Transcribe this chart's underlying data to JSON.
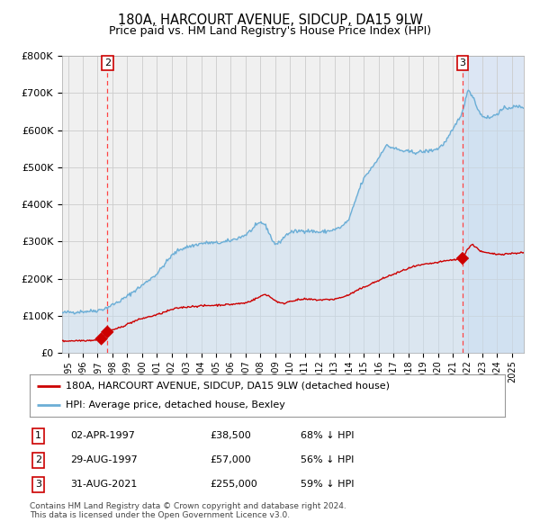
{
  "title": "180A, HARCOURT AVENUE, SIDCUP, DA15 9LW",
  "subtitle": "Price paid vs. HM Land Registry's House Price Index (HPI)",
  "ylim": [
    0,
    800000
  ],
  "yticks": [
    0,
    100000,
    200000,
    300000,
    400000,
    500000,
    600000,
    700000,
    800000
  ],
  "ytick_labels": [
    "£0",
    "£100K",
    "£200K",
    "£300K",
    "£400K",
    "£500K",
    "£600K",
    "£700K",
    "£800K"
  ],
  "xlim_start": 1994.6,
  "xlim_end": 2025.8,
  "hpi_color": "#6baed6",
  "hpi_fill_color": "#c8ddf0",
  "price_color": "#cc0000",
  "sale_marker_color": "#cc0000",
  "grid_color": "#cccccc",
  "bg_color": "#ffffff",
  "plot_bg_color": "#f0f0f0",
  "sale_bg_color": "#dce6f4",
  "vline_color": "#ff4444",
  "marker2_label": "2",
  "marker3_label": "3",
  "legend_line1": "180A, HARCOURT AVENUE, SIDCUP, DA15 9LW (detached house)",
  "legend_line2": "HPI: Average price, detached house, Bexley",
  "table_rows": [
    {
      "num": "1",
      "date": "02-APR-1997",
      "price": "£38,500",
      "note": "68% ↓ HPI"
    },
    {
      "num": "2",
      "date": "29-AUG-1997",
      "price": "£57,000",
      "note": "56% ↓ HPI"
    },
    {
      "num": "3",
      "date": "31-AUG-2021",
      "price": "£255,000",
      "note": "59% ↓ HPI"
    }
  ],
  "footer": "Contains HM Land Registry data © Crown copyright and database right 2024.\nThis data is licensed under the Open Government Licence v3.0.",
  "sale1_x": 1997.25,
  "sale2_x": 1997.66,
  "sale3_x": 2021.66,
  "sale1_y": 38500,
  "sale2_y": 57000,
  "sale3_y": 255000,
  "vline2_x": 1997.66,
  "vline3_x": 2021.66
}
